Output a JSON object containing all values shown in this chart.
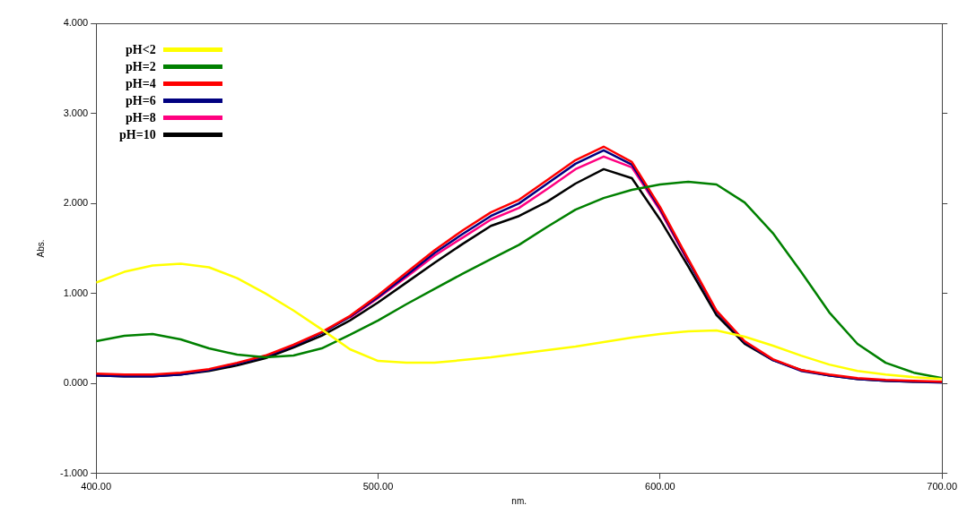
{
  "chart_data": {
    "type": "line",
    "xlabel": "nm.",
    "ylabel": "Abs.",
    "xlim": [
      400,
      700
    ],
    "ylim": [
      -1,
      4
    ],
    "xticks": [
      {
        "value": 400,
        "label": "400.00"
      },
      {
        "value": 500,
        "label": "500.00"
      },
      {
        "value": 600,
        "label": "600.00"
      },
      {
        "value": 700,
        "label": "700.00"
      }
    ],
    "yticks": [
      {
        "value": -1,
        "label": "-1.000"
      },
      {
        "value": 0,
        "label": "0.000"
      },
      {
        "value": 1,
        "label": "1.000"
      },
      {
        "value": 2,
        "label": "2.000"
      },
      {
        "value": 3,
        "label": "3.000"
      },
      {
        "value": 4,
        "label": "4.000"
      }
    ],
    "grid": false,
    "legend": "top left",
    "marker": "none",
    "line_style": "solid",
    "x": [
      400,
      410,
      420,
      430,
      440,
      450,
      460,
      470,
      480,
      490,
      500,
      510,
      520,
      530,
      540,
      550,
      560,
      570,
      580,
      590,
      600,
      610,
      620,
      630,
      640,
      650,
      660,
      670,
      680,
      690,
      700
    ],
    "series": [
      {
        "name": "pH<2",
        "color": "#ffff00",
        "values": [
          1.12,
          1.24,
          1.31,
          1.33,
          1.29,
          1.17,
          1.0,
          0.81,
          0.6,
          0.38,
          0.25,
          0.23,
          0.23,
          0.26,
          0.29,
          0.33,
          0.37,
          0.41,
          0.46,
          0.51,
          0.55,
          0.58,
          0.59,
          0.52,
          0.42,
          0.31,
          0.21,
          0.14,
          0.1,
          0.07,
          0.05
        ]
      },
      {
        "name": "pH=2",
        "color": "#008000",
        "values": [
          0.47,
          0.53,
          0.55,
          0.49,
          0.39,
          0.32,
          0.29,
          0.31,
          0.39,
          0.54,
          0.7,
          0.88,
          1.05,
          1.22,
          1.38,
          1.54,
          1.74,
          1.93,
          2.06,
          2.15,
          2.21,
          2.24,
          2.21,
          2.01,
          1.67,
          1.24,
          0.79,
          0.44,
          0.23,
          0.12,
          0.06
        ]
      },
      {
        "name": "pH=4",
        "color": "#ff0000",
        "values": [
          0.11,
          0.1,
          0.1,
          0.12,
          0.16,
          0.23,
          0.31,
          0.43,
          0.57,
          0.75,
          0.98,
          1.23,
          1.48,
          1.7,
          1.9,
          2.04,
          2.26,
          2.48,
          2.63,
          2.46,
          1.96,
          1.38,
          0.81,
          0.47,
          0.27,
          0.15,
          0.1,
          0.06,
          0.04,
          0.03,
          0.02
        ]
      },
      {
        "name": "pH=6",
        "color": "#000080",
        "values": [
          0.09,
          0.08,
          0.08,
          0.1,
          0.15,
          0.22,
          0.3,
          0.42,
          0.56,
          0.74,
          0.96,
          1.2,
          1.45,
          1.66,
          1.86,
          2.0,
          2.22,
          2.44,
          2.59,
          2.43,
          1.94,
          1.36,
          0.8,
          0.46,
          0.26,
          0.14,
          0.09,
          0.05,
          0.03,
          0.02,
          0.01
        ]
      },
      {
        "name": "pH=8",
        "color": "#ff0080",
        "values": [
          null,
          null,
          null,
          null,
          null,
          null,
          null,
          null,
          null,
          0.73,
          0.95,
          1.18,
          1.42,
          1.62,
          1.82,
          1.95,
          2.16,
          2.38,
          2.52,
          2.4,
          1.92,
          1.35,
          null,
          null,
          null,
          null,
          null,
          null,
          null,
          null,
          null
        ]
      },
      {
        "name": "pH=10",
        "color": "#000000",
        "values": [
          0.09,
          0.08,
          0.08,
          0.1,
          0.14,
          0.2,
          0.28,
          0.4,
          0.53,
          0.7,
          0.9,
          1.12,
          1.34,
          1.55,
          1.75,
          1.86,
          2.02,
          2.22,
          2.38,
          2.28,
          1.82,
          1.3,
          0.76,
          0.44,
          0.26,
          0.15,
          0.09,
          0.05,
          0.03,
          0.02,
          0.02
        ]
      }
    ]
  }
}
